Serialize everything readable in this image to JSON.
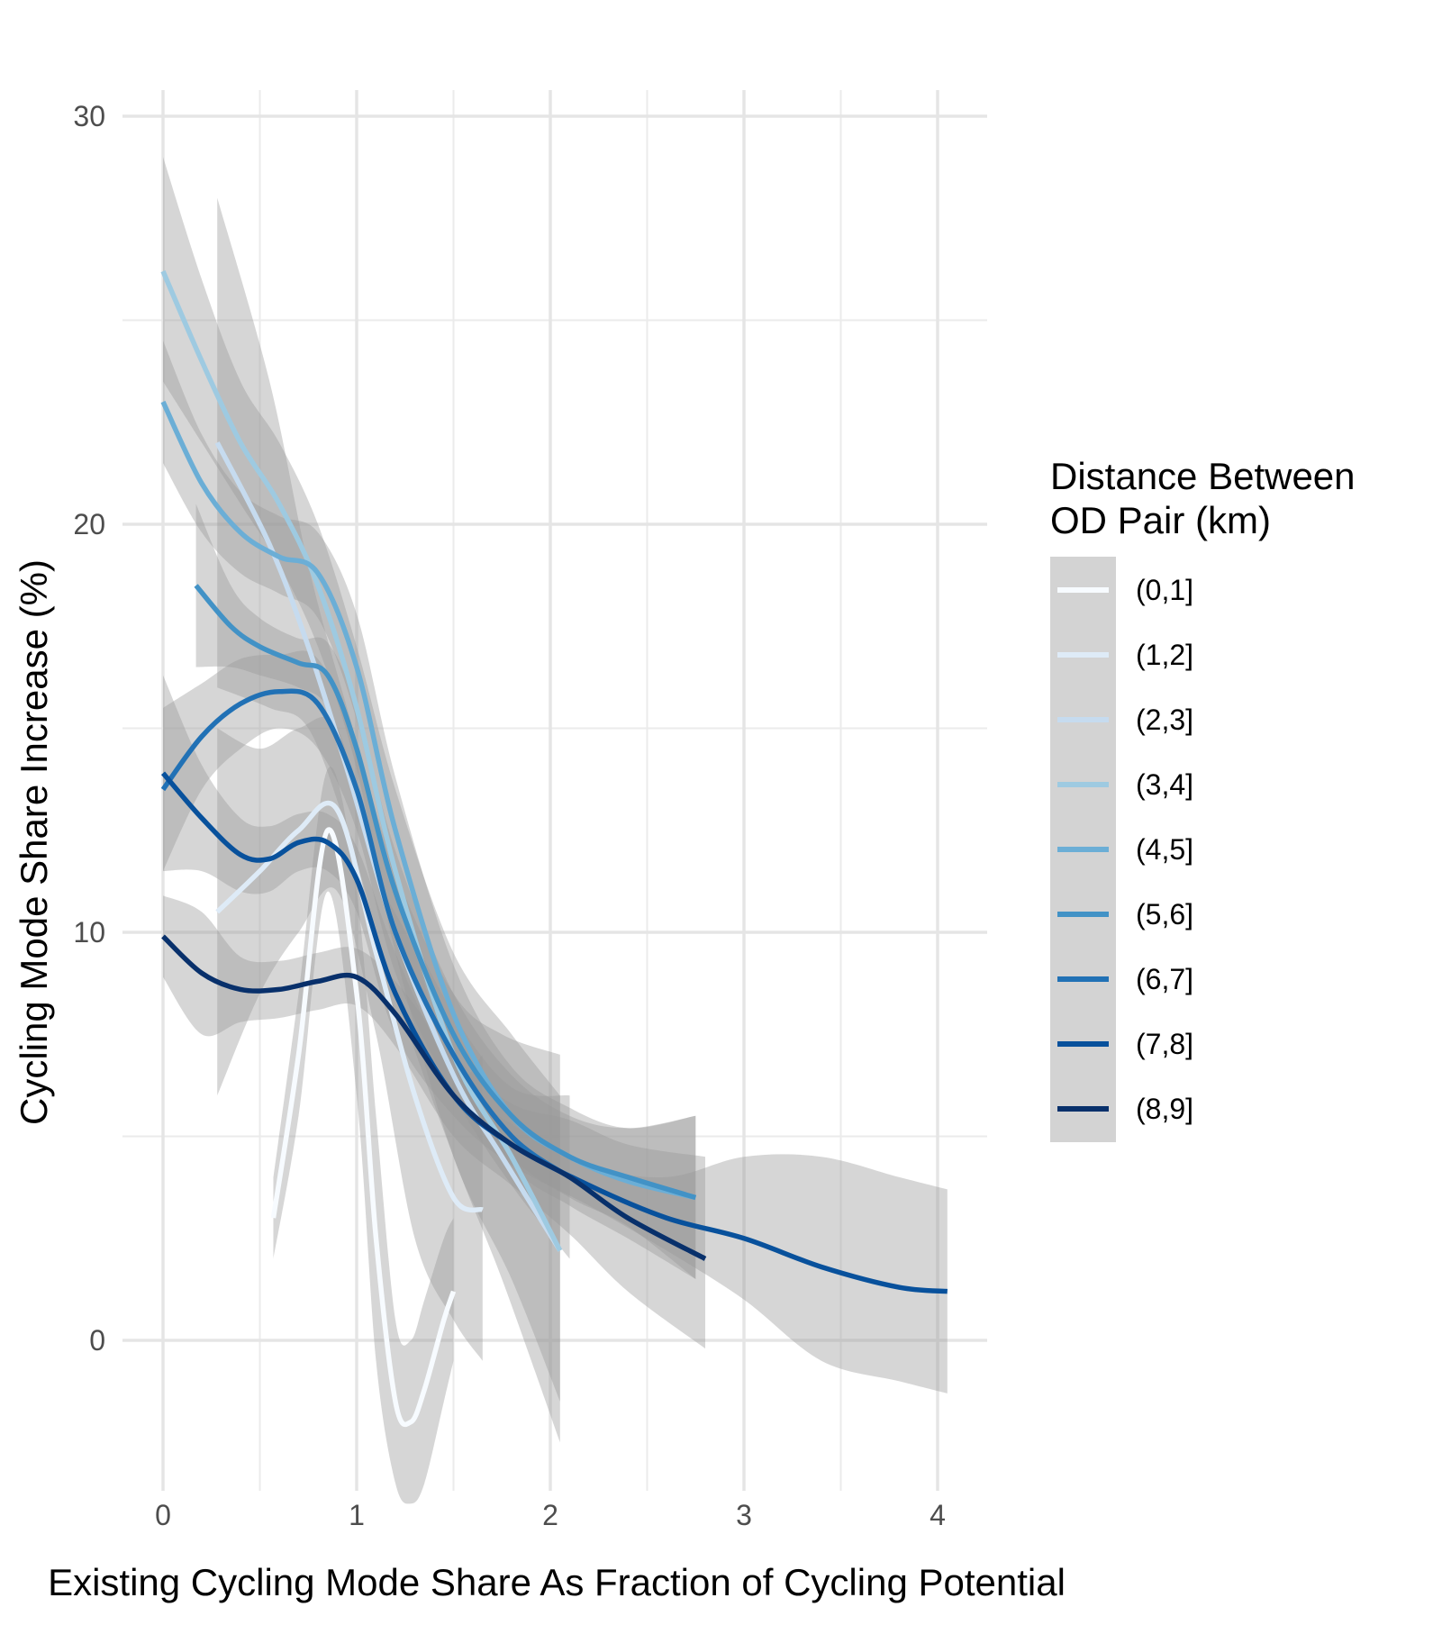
{
  "chart_data": {
    "type": "line",
    "title": "",
    "xlabel": "Existing Cycling Mode Share As Fraction of Cycling Potential",
    "ylabel": "Cycling Mode Share Increase (%)",
    "xlim": [
      -0.05,
      4.25
    ],
    "ylim": [
      -4.5,
      32
    ],
    "x_ticks": [
      0,
      1,
      2,
      3,
      4
    ],
    "y_ticks": [
      0,
      10,
      20,
      30
    ],
    "x_tick_labels": [
      "0",
      "1",
      "2",
      "3",
      "4"
    ],
    "y_tick_labels": [
      "0",
      "10",
      "20",
      "30"
    ],
    "grid": true,
    "legend": {
      "title_line1": "Distance Between",
      "title_line2": "OD Pair (km)",
      "position": "right"
    },
    "series": [
      {
        "name": "(0,1]",
        "color": "#f7fbff",
        "x": [
          0.57,
          0.7,
          0.85,
          1.0,
          1.1,
          1.2,
          1.28,
          1.35,
          1.45,
          1.5
        ],
        "y": [
          3.0,
          7.0,
          12.5,
          8.5,
          2.5,
          -1.5,
          -2.0,
          -1.2,
          0.5,
          1.2
        ],
        "lower": [
          2.0,
          5.5,
          11.0,
          6.0,
          -0.5,
          -3.5,
          -4.0,
          -3.5,
          -1.5,
          -0.5
        ],
        "upper": [
          4.0,
          8.5,
          14.0,
          11.0,
          5.5,
          0.5,
          0.0,
          1.0,
          2.5,
          3.0
        ]
      },
      {
        "name": "(1,2]",
        "color": "#deebf7",
        "x": [
          0.28,
          0.5,
          0.7,
          0.9,
          1.1,
          1.3,
          1.5,
          1.65
        ],
        "y": [
          10.5,
          11.5,
          12.5,
          13.0,
          9.5,
          6.0,
          3.5,
          3.2
        ],
        "lower": [
          6.0,
          8.5,
          10.0,
          11.0,
          7.5,
          2.5,
          0.5,
          -0.5
        ],
        "upper": [
          15.0,
          14.5,
          15.0,
          15.0,
          11.5,
          9.5,
          6.5,
          7.0
        ]
      },
      {
        "name": "(2,3]",
        "color": "#c6dbef",
        "x": [
          0.28,
          0.55,
          0.75,
          0.95,
          1.2,
          1.5,
          1.75,
          2.05
        ],
        "y": [
          22.0,
          19.5,
          17.0,
          14.0,
          10.0,
          6.5,
          4.5,
          2.2
        ],
        "lower": [
          16.0,
          15.5,
          15.0,
          12.5,
          8.5,
          4.5,
          1.5,
          -2.5
        ],
        "upper": [
          28.0,
          23.5,
          19.0,
          15.5,
          11.5,
          8.5,
          7.5,
          7.0
        ]
      },
      {
        "name": "(3,4]",
        "color": "#9ecae1",
        "x": [
          0.0,
          0.2,
          0.4,
          0.6,
          0.8,
          1.0,
          1.2,
          1.5,
          1.8,
          2.05
        ],
        "y": [
          26.2,
          24.0,
          22.0,
          20.5,
          18.5,
          15.5,
          11.5,
          7.0,
          4.5,
          2.2
        ],
        "lower": [
          23.5,
          22.0,
          20.5,
          19.0,
          17.0,
          14.0,
          9.5,
          4.5,
          1.5,
          -1.5
        ],
        "upper": [
          29.0,
          26.0,
          23.5,
          22.0,
          20.0,
          17.0,
          13.5,
          9.5,
          7.5,
          6.0
        ]
      },
      {
        "name": "(4,5]",
        "color": "#6baed6",
        "x": [
          0.0,
          0.2,
          0.4,
          0.6,
          0.8,
          1.0,
          1.2,
          1.5,
          1.8,
          2.1,
          2.4,
          2.75
        ],
        "y": [
          23.0,
          21.0,
          19.8,
          19.2,
          18.8,
          16.5,
          12.5,
          8.0,
          5.5,
          4.5,
          3.9,
          3.5
        ],
        "lower": [
          21.5,
          19.8,
          18.8,
          18.3,
          17.7,
          15.2,
          11.2,
          6.8,
          4.3,
          3.3,
          2.5,
          1.5
        ],
        "upper": [
          24.5,
          22.2,
          20.8,
          20.2,
          19.8,
          17.8,
          13.8,
          9.2,
          6.7,
          5.7,
          5.2,
          5.5
        ]
      },
      {
        "name": "(5,6]",
        "color": "#4292c6",
        "x": [
          0.17,
          0.35,
          0.5,
          0.7,
          0.85,
          1.0,
          1.2,
          1.5,
          1.8,
          2.1,
          2.4,
          2.75
        ],
        "y": [
          18.5,
          17.5,
          17.0,
          16.6,
          16.3,
          14.5,
          11.0,
          7.5,
          5.5,
          4.5,
          4.0,
          3.5
        ],
        "lower": [
          16.5,
          16.5,
          16.3,
          16.0,
          15.5,
          13.5,
          10.0,
          6.5,
          4.5,
          3.5,
          2.8,
          1.5
        ],
        "upper": [
          20.5,
          18.5,
          17.7,
          17.2,
          17.1,
          15.5,
          12.0,
          8.5,
          6.5,
          5.5,
          5.2,
          5.5
        ]
      },
      {
        "name": "(6,7]",
        "color": "#2171b5",
        "x": [
          0.0,
          0.2,
          0.4,
          0.6,
          0.8,
          1.0,
          1.2,
          1.5,
          1.8,
          2.1
        ],
        "y": [
          13.5,
          14.8,
          15.6,
          15.9,
          15.6,
          13.5,
          10.0,
          7.0,
          5.0,
          4.0
        ],
        "lower": [
          11.5,
          13.5,
          14.5,
          15.0,
          14.5,
          12.5,
          9.0,
          6.0,
          3.8,
          2.0
        ],
        "upper": [
          15.5,
          16.1,
          16.7,
          16.8,
          16.7,
          14.5,
          11.0,
          8.0,
          6.2,
          6.0
        ]
      },
      {
        "name": "(7,8]",
        "color": "#08519c",
        "x": [
          0.0,
          0.2,
          0.4,
          0.55,
          0.7,
          0.85,
          1.0,
          1.2,
          1.5,
          1.8,
          2.2,
          2.6,
          3.0,
          3.4,
          3.8,
          4.05
        ],
        "y": [
          13.9,
          12.8,
          11.9,
          11.8,
          12.2,
          12.2,
          11.3,
          8.5,
          6.0,
          4.8,
          3.8,
          3.0,
          2.5,
          1.8,
          1.3,
          1.2
        ],
        "lower": [
          11.5,
          11.5,
          11.0,
          11.0,
          11.5,
          11.5,
          10.5,
          7.5,
          5.5,
          4.3,
          3.3,
          2.2,
          1.0,
          -0.5,
          -1.0,
          -1.3
        ],
        "upper": [
          16.3,
          14.1,
          12.8,
          12.6,
          12.9,
          12.9,
          12.1,
          9.5,
          6.5,
          5.3,
          4.3,
          4.0,
          4.5,
          4.5,
          4.0,
          3.7
        ]
      },
      {
        "name": "(8,9]",
        "color": "#08306b",
        "x": [
          0.0,
          0.2,
          0.4,
          0.6,
          0.8,
          1.0,
          1.2,
          1.5,
          1.8,
          2.1,
          2.4,
          2.8
        ],
        "y": [
          9.9,
          9.0,
          8.6,
          8.6,
          8.8,
          8.9,
          8.0,
          6.0,
          4.8,
          4.0,
          3.0,
          2.0
        ],
        "lower": [
          8.9,
          7.5,
          7.8,
          7.9,
          8.1,
          8.2,
          7.2,
          5.0,
          3.8,
          2.6,
          1.2,
          -0.2
        ],
        "upper": [
          10.9,
          10.5,
          9.4,
          9.3,
          9.5,
          9.6,
          8.8,
          7.0,
          5.8,
          5.4,
          4.8,
          4.5
        ]
      }
    ]
  }
}
